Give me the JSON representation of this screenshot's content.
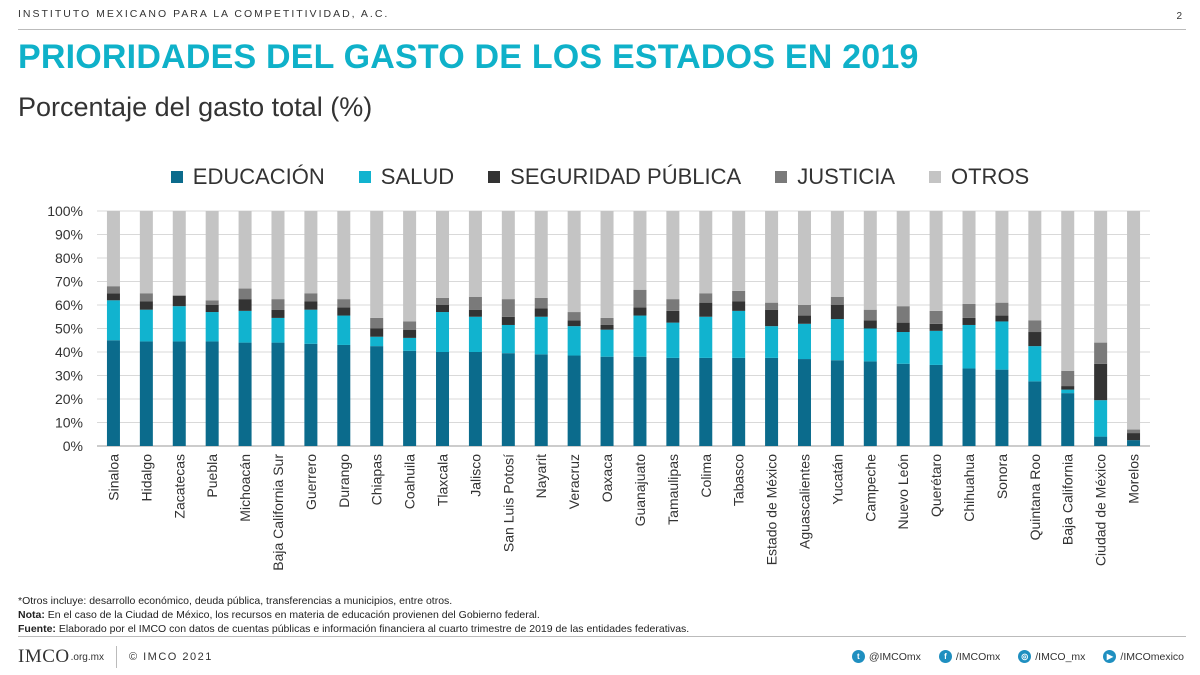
{
  "header": {
    "organization": "INSTITUTO MEXICANO PARA LA COMPETITIVIDAD, A.C.",
    "page_number": "2"
  },
  "title": "PRIORIDADES DEL GASTO DE LOS ESTADOS EN 2019",
  "subtitle": "Porcentaje del gasto total (%)",
  "colors": {
    "educacion": "#0b6b8c",
    "salud": "#11b3cf",
    "seguridad": "#333333",
    "justicia": "#7a7a7a",
    "otros": "#c4c4c4",
    "title": "#0fb1c9"
  },
  "legend": [
    {
      "label": "EDUCACIÓN",
      "color": "#0b6b8c"
    },
    {
      "label": "SALUD",
      "color": "#11b3cf"
    },
    {
      "label": "SEGURIDAD PÚBLICA",
      "color": "#333333"
    },
    {
      "label": "JUSTICIA",
      "color": "#7a7a7a"
    },
    {
      "label": "OTROS",
      "color": "#c4c4c4"
    }
  ],
  "chart_data": {
    "type": "bar",
    "stacked": true,
    "ylim": [
      0,
      100
    ],
    "yticks": [
      "0%",
      "10%",
      "20%",
      "30%",
      "40%",
      "50%",
      "60%",
      "70%",
      "80%",
      "90%",
      "100%"
    ],
    "grid": true,
    "legend_position": "top",
    "categories": [
      "Sinaloa",
      "Hidalgo",
      "Zacatecas",
      "Puebla",
      "Michoacán",
      "Baja California Sur",
      "Guerrero",
      "Durango",
      "Chiapas",
      "Coahuila",
      "Tlaxcala",
      "Jalisco",
      "San Luis Potosí",
      "Nayarit",
      "Veracruz",
      "Oaxaca",
      "Guanajuato",
      "Tamaulipas",
      "Colima",
      "Tabasco",
      "Estado de México",
      "Aguascalientes",
      "Yucatán",
      "Campeche",
      "Nuevo León",
      "Querétaro",
      "Chihuahua",
      "Sonora",
      "Quintana Roo",
      "Baja California",
      "Ciudad de México",
      "Morelos"
    ],
    "series": [
      {
        "name": "EDUCACIÓN",
        "values": [
          45,
          44.5,
          44.5,
          44.5,
          44,
          44,
          43.5,
          43,
          42.5,
          40.5,
          40,
          40,
          39.5,
          39,
          38.5,
          38,
          38,
          37.5,
          37.5,
          37.5,
          37.5,
          37,
          36.5,
          36,
          35,
          34.5,
          33,
          32.5,
          27.5,
          22.5,
          4,
          2.5
        ]
      },
      {
        "name": "SALUD",
        "values": [
          17,
          13.5,
          15,
          12.5,
          13.5,
          10.5,
          14.5,
          12.5,
          4,
          5.5,
          17,
          15,
          12,
          16,
          12.5,
          11.5,
          17.5,
          15,
          17.5,
          20,
          13.5,
          15,
          17.5,
          14,
          13.5,
          14.5,
          18.5,
          20.5,
          15,
          1.5,
          15.5,
          0
        ]
      },
      {
        "name": "SEGURIDAD PÚBLICA",
        "values": [
          3,
          3.5,
          4.5,
          3,
          5,
          3.5,
          3.5,
          3.5,
          3.5,
          3.5,
          3,
          3,
          3.5,
          3.5,
          2.5,
          2,
          3.5,
          5,
          6,
          4,
          7,
          3.5,
          6,
          3.5,
          4,
          3,
          3,
          2.5,
          6,
          1.5,
          15.5,
          3
        ]
      },
      {
        "name": "JUSTICIA",
        "values": [
          3,
          3.5,
          0,
          2,
          4.5,
          4.5,
          3.5,
          3.5,
          4.5,
          3.5,
          3,
          5.5,
          7.5,
          4.5,
          3.5,
          3,
          7.5,
          5,
          4,
          4.5,
          3,
          4.5,
          3.5,
          4.5,
          7,
          5.5,
          6,
          5.5,
          5,
          6.5,
          9,
          1.5
        ]
      },
      {
        "name": "OTROS",
        "values": [
          32,
          35,
          36,
          38,
          33,
          37.5,
          35,
          37.5,
          45.5,
          47,
          37,
          36.5,
          37.5,
          37,
          43,
          45.5,
          33.5,
          37.5,
          35,
          34,
          39,
          40,
          36.5,
          42,
          40.5,
          42.5,
          39.5,
          39,
          46.5,
          68,
          56,
          93
        ]
      }
    ]
  },
  "notes": {
    "otros": "*Otros incluye: desarrollo económico, deuda pública, transferencias a municipios, entre otros.",
    "nota_label": "Nota:",
    "nota_text": " En el caso de la Ciudad de México, los recursos en materia de educación provienen del Gobierno federal.",
    "fuente_label": "Fuente:",
    "fuente_text": " Elaborado por el IMCO con datos de cuentas públicas e información financiera al cuarto trimestre de 2019 de las entidades federativas."
  },
  "footer": {
    "logo_text": "IMCO",
    "logo_domain": ".org.mx",
    "copyright": "© IMCO 2021",
    "socials": [
      {
        "icon": "twitter-icon",
        "glyph": "t",
        "handle": "@IMCOmx"
      },
      {
        "icon": "facebook-icon",
        "glyph": "f",
        "handle": "/IMCOmx"
      },
      {
        "icon": "instagram-icon",
        "glyph": "◎",
        "handle": "/IMCO_mx"
      },
      {
        "icon": "youtube-icon",
        "glyph": "▶",
        "handle": "/IMCOmexico"
      }
    ]
  }
}
